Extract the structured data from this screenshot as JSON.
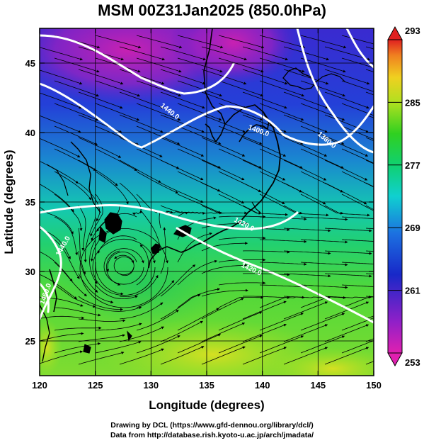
{
  "title": "MSM 00Z31Jan2025 (850.0hPa)",
  "x_axis": {
    "label": "Longitude (degrees)",
    "ticks": [
      "120",
      "125",
      "130",
      "135",
      "140",
      "145",
      "150"
    ]
  },
  "y_axis": {
    "label": "Latitude  (degrees)",
    "ticks": [
      "25",
      "30",
      "35",
      "40",
      "45"
    ]
  },
  "colorbar": {
    "labels": [
      "293",
      "285",
      "277",
      "269",
      "261",
      "253"
    ]
  },
  "contour_labels": [
    "1440.0",
    "1400.0",
    "1380.0",
    "1420.0",
    "1420.0",
    "1440.0",
    "1460.0"
  ],
  "credits": {
    "line1": "Drawing by DCL (https://www.gfd-dennou.org/library/dcl/)",
    "line2": "Data from http://database.rish.kyoto-u.ac.jp/arch/jmadata/"
  },
  "chart_data": {
    "type": "heatmap",
    "title": "MSM 00Z31Jan2025 (850.0hPa)",
    "xlabel": "Longitude (degrees)",
    "ylabel": "Latitude  (degrees)",
    "xlim": [
      120,
      150
    ],
    "ylim": [
      22.5,
      47.5
    ],
    "color_range": [
      253,
      293
    ],
    "colormap": [
      "#e040c0",
      "#8020c0",
      "#2040d0",
      "#2090d0",
      "#10d0c0",
      "#20d060",
      "#80e020",
      "#e0e020",
      "#f0a020",
      "#e04020"
    ],
    "grid": true,
    "overlays": [
      "streamlines",
      "geopotential-height-contours",
      "coastlines"
    ],
    "contours": [
      {
        "label": "1440.0",
        "lon": 131.5,
        "lat": 41.5
      },
      {
        "label": "1400.0",
        "lon": 139.0,
        "lat": 41.0
      },
      {
        "label": "1380.0",
        "lon": 145.5,
        "lat": 40.0
      },
      {
        "label": "1420.0",
        "lon": 137.0,
        "lat": 34.5
      },
      {
        "label": "1420.0",
        "lon": 142.0,
        "lat": 31.0
      },
      {
        "label": "1440.0",
        "lon": 122.0,
        "lat": 31.5
      },
      {
        "label": "1460.0",
        "lon": 121.0,
        "lat": 27.0
      }
    ]
  }
}
